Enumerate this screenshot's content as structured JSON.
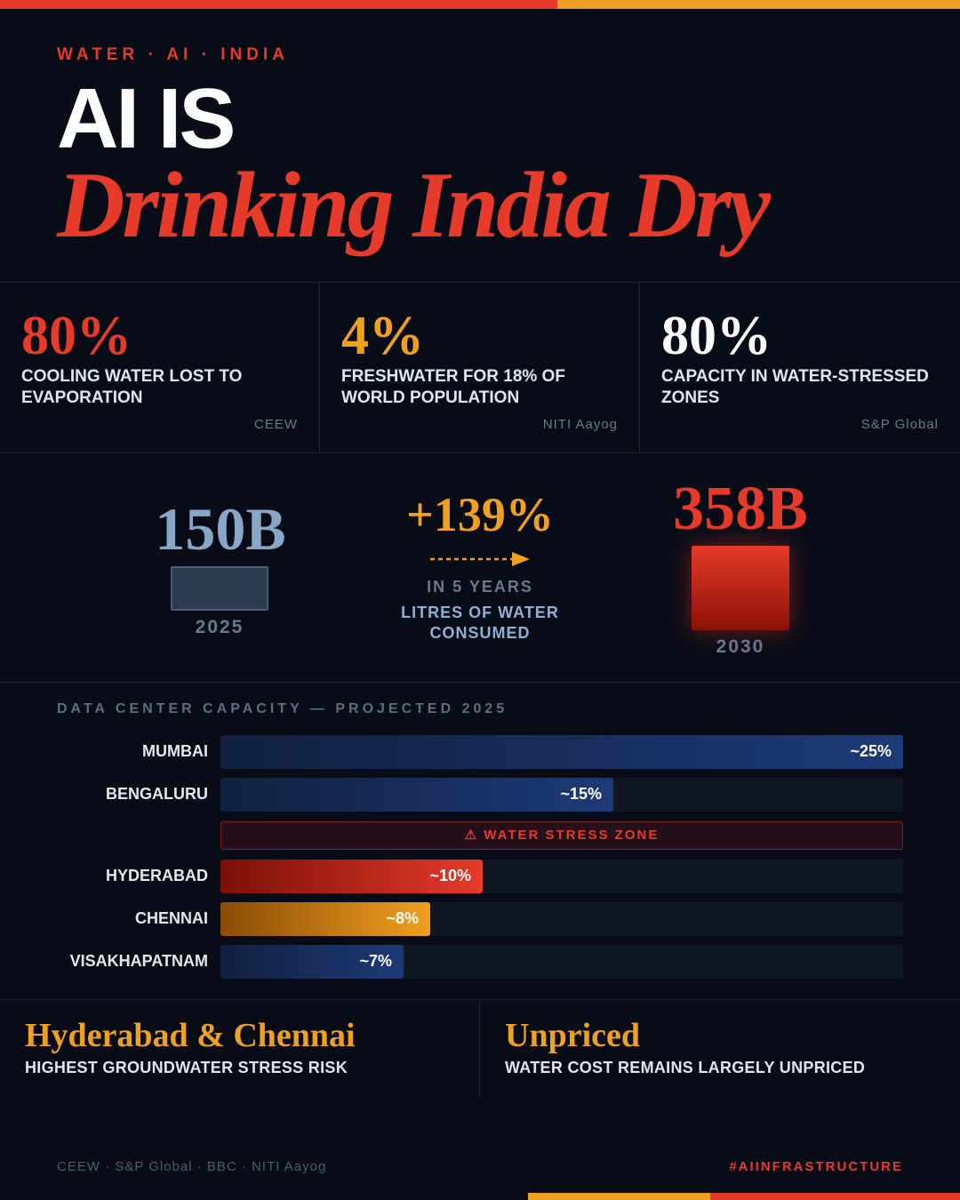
{
  "colors": {
    "background": "#080c16",
    "red": "#e63a2a",
    "orange": "#f0a020",
    "blue": "#1d3a78",
    "muted": "#6b788c"
  },
  "header": {
    "kicker": "WATER · AI · INDIA",
    "title_line1": "AI IS",
    "title_line2": "Drinking India Dry"
  },
  "stats": [
    {
      "value": "80%",
      "label": "Cooling water lost to evaporation",
      "source": "CEEW",
      "color": "#e63a2a"
    },
    {
      "value": "4%",
      "label": "Freshwater for 18% of world population",
      "source": "NITI Aayog",
      "color": "#f0a020"
    },
    {
      "value": "80%",
      "label": "Capacity in water-stressed zones",
      "source": "S&P Global",
      "color": "#ffffff"
    }
  ],
  "growth": {
    "from_value": "150B",
    "from_year": "2025",
    "change": "+139%",
    "period": "IN 5 YEARS",
    "metric": "LITRES OF WATER CONSUMED",
    "to_value": "358B",
    "to_year": "2030"
  },
  "capacity": {
    "title": "DATA CENTER CAPACITY — PROJECTED 2025",
    "stress_label": "⚠ WATER STRESS ZONE",
    "rows": [
      {
        "city": "MUMBAI",
        "label": "~25%",
        "value": 25,
        "color": "blue"
      },
      {
        "city": "BENGALURU",
        "label": "~15%",
        "value": 15,
        "color": "blue"
      },
      {
        "city": "HYDERABAD",
        "label": "~10%",
        "value": 10,
        "color": "red"
      },
      {
        "city": "CHENNAI",
        "label": "~8%",
        "value": 8,
        "color": "orange"
      },
      {
        "city": "VISAKHAPATNAM",
        "label": "~7%",
        "value": 7,
        "color": "blue"
      }
    ],
    "max_value": 25
  },
  "bottom": {
    "left_head": "Hyderabad & Chennai",
    "left_sub": "HIGHEST GROUNDWATER STRESS RISK",
    "right_head": "Unpriced",
    "right_sub": "WATER COST REMAINS LARGELY UNPRICED"
  },
  "footer": {
    "sources": "CEEW · S&P Global · BBC · NITI Aayog",
    "hashtag": "#AIINFRASTRUCTURE"
  }
}
